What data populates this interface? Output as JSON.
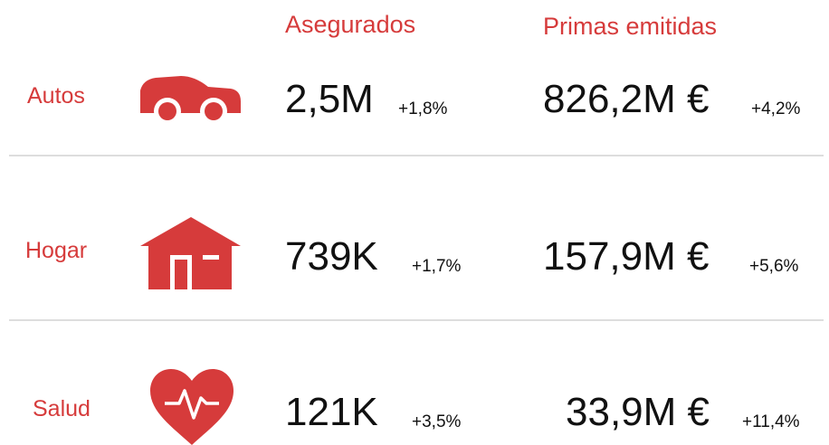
{
  "headers": [
    "Asegurados",
    "Primas emitidas"
  ],
  "rows": [
    {
      "label": "Autos",
      "insured": "2,5M",
      "insured_change": "+1,8%",
      "premiums": "826,2M €",
      "premiums_change": "+4,2%"
    },
    {
      "label": "Hogar",
      "insured": "739K",
      "insured_change": "+1,7%",
      "premiums": "157,9M €",
      "premiums_change": "+5,6%"
    },
    {
      "label": "Salud",
      "insured": "121K",
      "insured_change": "+3,5%",
      "premiums": "33,9M €",
      "premiums_change": "+11,4%"
    }
  ]
}
